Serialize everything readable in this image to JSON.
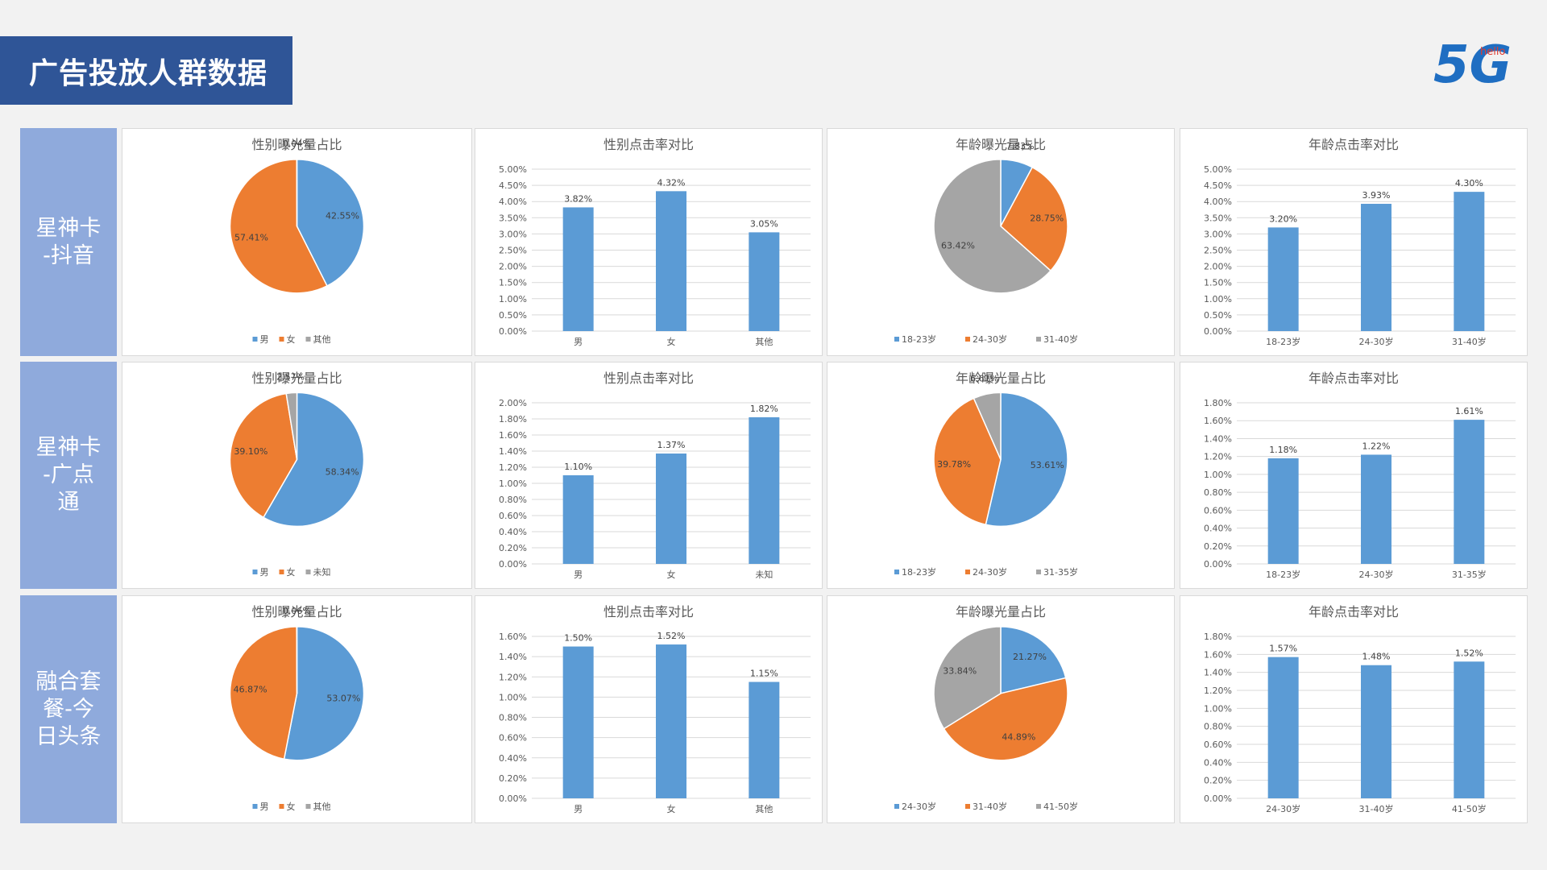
{
  "page": {
    "title": "广告投放人群数据"
  },
  "logo": {
    "text_big": "5G",
    "text_small": "hello"
  },
  "colors": {
    "banner": "#2f5597",
    "row_label": "#8faadc",
    "blue": "#5b9bd5",
    "orange": "#ed7d31",
    "gray": "#a5a5a5"
  },
  "rows": [
    {
      "label": "星神卡\n-抖音"
    },
    {
      "label": "星神卡\n-广点\n通"
    },
    {
      "label": "融合套\n餐-今\n日头条"
    }
  ],
  "chart_data": [
    {
      "type": "pie",
      "title": "性别曝光量占比",
      "categories": [
        "男",
        "女",
        "其他"
      ],
      "values": [
        42.55,
        57.41,
        0.04
      ],
      "labels": [
        "42.55%",
        "57.41%",
        "0.04%"
      ],
      "legend": "bottom"
    },
    {
      "type": "bar",
      "title": "性别点击率对比",
      "categories": [
        "男",
        "女",
        "其他"
      ],
      "values": [
        3.82,
        4.32,
        3.05
      ],
      "labels": [
        "3.82%",
        "4.32%",
        "3.05%"
      ],
      "ylim": [
        0,
        5
      ],
      "yticks": [
        "0.00%",
        "0.50%",
        "1.00%",
        "1.50%",
        "2.00%",
        "2.50%",
        "3.00%",
        "3.50%",
        "4.00%",
        "4.50%",
        "5.00%"
      ],
      "grid": true
    },
    {
      "type": "pie",
      "title": "年龄曝光量占比",
      "categories": [
        "18-23岁",
        "24-30岁",
        "31-40岁"
      ],
      "values": [
        7.83,
        28.75,
        63.42
      ],
      "labels": [
        "7.83%",
        "28.75%",
        "63.42%"
      ],
      "legend": "bottom"
    },
    {
      "type": "bar",
      "title": "年龄点击率对比",
      "categories": [
        "18-23岁",
        "24-30岁",
        "31-40岁"
      ],
      "values": [
        3.2,
        3.93,
        4.3
      ],
      "labels": [
        "3.20%",
        "3.93%",
        "4.30%"
      ],
      "ylim": [
        0,
        5
      ],
      "yticks": [
        "0.00%",
        "0.50%",
        "1.00%",
        "1.50%",
        "2.00%",
        "2.50%",
        "3.00%",
        "3.50%",
        "4.00%",
        "4.50%",
        "5.00%"
      ],
      "grid": true
    },
    {
      "type": "pie",
      "title": "性别曝光量占比",
      "categories": [
        "男",
        "女",
        "未知"
      ],
      "values": [
        58.34,
        39.1,
        2.57
      ],
      "labels": [
        "58.34%",
        "39.10%",
        "2.57%"
      ],
      "legend": "bottom"
    },
    {
      "type": "bar",
      "title": "性别点击率对比",
      "categories": [
        "男",
        "女",
        "未知"
      ],
      "values": [
        1.1,
        1.37,
        1.82
      ],
      "labels": [
        "1.10%",
        "1.37%",
        "1.82%"
      ],
      "ylim": [
        0,
        2
      ],
      "yticks": [
        "0.00%",
        "0.20%",
        "0.40%",
        "0.60%",
        "0.80%",
        "1.00%",
        "1.20%",
        "1.40%",
        "1.60%",
        "1.80%",
        "2.00%"
      ],
      "grid": true
    },
    {
      "type": "pie",
      "title": "年龄曝光量占比",
      "categories": [
        "18-23岁",
        "24-30岁",
        "31-35岁"
      ],
      "values": [
        53.61,
        39.78,
        6.61
      ],
      "labels": [
        "53.61%",
        "39.78%",
        "6.61%"
      ],
      "legend": "bottom"
    },
    {
      "type": "bar",
      "title": "年龄点击率对比",
      "categories": [
        "18-23岁",
        "24-30岁",
        "31-35岁"
      ],
      "values": [
        1.18,
        1.22,
        1.61
      ],
      "labels": [
        "1.18%",
        "1.22%",
        "1.61%"
      ],
      "ylim": [
        0,
        1.8
      ],
      "yticks": [
        "0.00%",
        "0.20%",
        "0.40%",
        "0.60%",
        "0.80%",
        "1.00%",
        "1.20%",
        "1.40%",
        "1.60%",
        "1.80%"
      ],
      "grid": true
    },
    {
      "type": "pie",
      "title": "性别曝光量占比",
      "categories": [
        "男",
        "女",
        "其他"
      ],
      "values": [
        53.07,
        46.87,
        0.06
      ],
      "labels": [
        "53.07%",
        "46.87%",
        "0.06%"
      ],
      "legend": "bottom"
    },
    {
      "type": "bar",
      "title": "性别点击率对比",
      "categories": [
        "男",
        "女",
        "其他"
      ],
      "values": [
        1.5,
        1.52,
        1.15
      ],
      "labels": [
        "1.50%",
        "1.52%",
        "1.15%"
      ],
      "ylim": [
        0,
        1.6
      ],
      "yticks": [
        "0.00%",
        "0.20%",
        "0.40%",
        "0.60%",
        "0.80%",
        "1.00%",
        "1.20%",
        "1.40%",
        "1.60%"
      ],
      "grid": true
    },
    {
      "type": "pie",
      "title": "年龄曝光量占比",
      "categories": [
        "24-30岁",
        "31-40岁",
        "41-50岁"
      ],
      "values": [
        21.27,
        44.89,
        33.84
      ],
      "labels": [
        "21.27%",
        "44.89%",
        "33.84%"
      ],
      "legend": "bottom"
    },
    {
      "type": "bar",
      "title": "年龄点击率对比",
      "categories": [
        "24-30岁",
        "31-40岁",
        "41-50岁"
      ],
      "values": [
        1.57,
        1.48,
        1.52
      ],
      "labels": [
        "1.57%",
        "1.48%",
        "1.52%"
      ],
      "ylim": [
        0,
        1.8
      ],
      "yticks": [
        "0.00%",
        "0.20%",
        "0.40%",
        "0.60%",
        "0.80%",
        "1.00%",
        "1.20%",
        "1.40%",
        "1.60%",
        "1.80%"
      ],
      "grid": true
    }
  ]
}
